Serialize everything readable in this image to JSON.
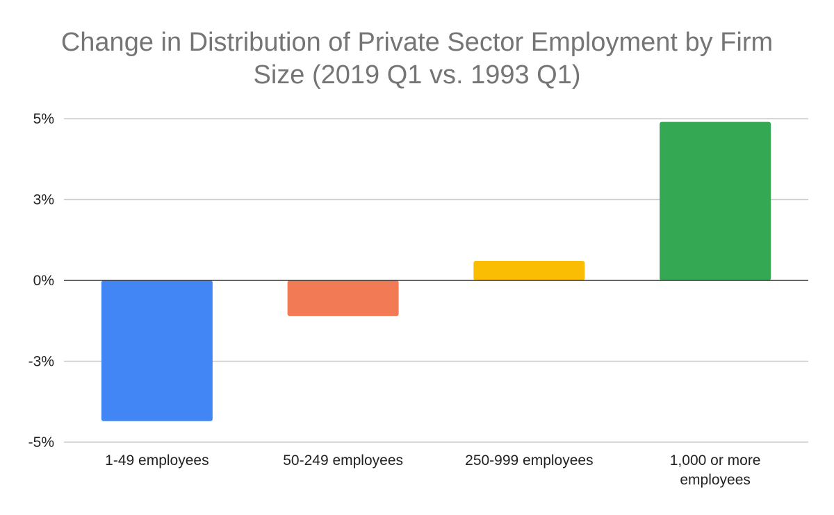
{
  "chart_data": {
    "type": "bar",
    "title_lines": [
      "Change in Distribution of Private Sector Employment by Firm",
      "Size (2019 Q1 vs. 1993 Q1)"
    ],
    "categories": [
      [
        "1-49 employees"
      ],
      [
        "50-249 employees"
      ],
      [
        "250-999 employees"
      ],
      [
        "1,000 or more",
        "employees"
      ]
    ],
    "values": [
      -4.35,
      -1.1,
      0.6,
      4.9
    ],
    "colors": [
      "#4285F4",
      "#F27B56",
      "#FBBC04",
      "#34A853"
    ],
    "y_ticks": [
      -5,
      -2.5,
      0,
      2.5,
      5
    ],
    "y_tick_labels": [
      "-5%",
      "-3%",
      "0%",
      "3%",
      "5%"
    ],
    "ylim": [
      -5,
      5
    ],
    "xlabel": "",
    "ylabel": "",
    "grid": true,
    "legend": "none"
  }
}
